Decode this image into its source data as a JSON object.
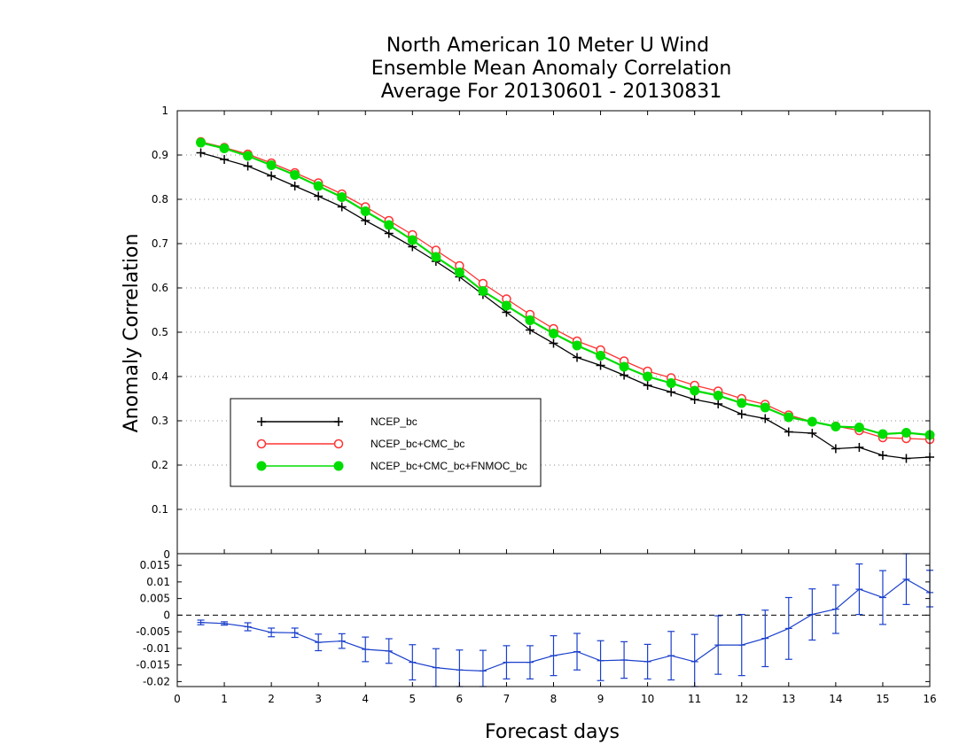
{
  "chart_data": [
    {
      "type": "line",
      "title_lines": [
        "North American 10 Meter U Wind",
        "Ensemble Mean Anomaly Correlation",
        "Average For 20130601 - 20130831"
      ],
      "ylabel": "Anomaly Correlation",
      "xlim": [
        0,
        16
      ],
      "ylim": [
        0,
        1
      ],
      "y_ticks": [
        "0",
        "0.1",
        "0.2",
        "0.3",
        "0.4",
        "0.5",
        "0.6",
        "0.7",
        "0.8",
        "0.9",
        "1"
      ],
      "grid": "horizontal-dotted",
      "legend_position": "lower-left",
      "x": [
        0.5,
        1,
        1.5,
        2,
        2.5,
        3,
        3.5,
        4,
        4.5,
        5,
        5.5,
        6,
        6.5,
        7,
        7.5,
        8,
        8.5,
        9,
        9.5,
        10,
        10.5,
        11,
        11.5,
        12,
        12.5,
        13,
        13.5,
        14,
        14.5,
        15,
        15.5,
        16
      ],
      "series": [
        {
          "name": "NCEP_bc",
          "color": "#000000",
          "marker": "plus",
          "values": [
            0.905,
            0.89,
            0.875,
            0.853,
            0.83,
            0.807,
            0.783,
            0.752,
            0.723,
            0.693,
            0.66,
            0.625,
            0.585,
            0.545,
            0.505,
            0.475,
            0.443,
            0.425,
            0.403,
            0.38,
            0.365,
            0.348,
            0.338,
            0.315,
            0.305,
            0.275,
            0.272,
            0.237,
            0.24,
            0.222,
            0.215,
            0.218
          ]
        },
        {
          "name": "NCEP_bc+CMC_bc",
          "color": "#ff3333",
          "marker": "open-circle",
          "values": [
            0.93,
            0.917,
            0.902,
            0.882,
            0.86,
            0.837,
            0.812,
            0.783,
            0.752,
            0.72,
            0.685,
            0.65,
            0.61,
            0.575,
            0.54,
            0.508,
            0.48,
            0.46,
            0.435,
            0.412,
            0.397,
            0.38,
            0.367,
            0.35,
            0.337,
            0.313,
            0.298,
            0.288,
            0.278,
            0.262,
            0.26,
            0.258
          ]
        },
        {
          "name": "NCEP_bc+CMC_bc+FNMOC_bc",
          "color": "#00dd00",
          "marker": "filled-circle",
          "values": [
            0.928,
            0.915,
            0.898,
            0.877,
            0.855,
            0.83,
            0.805,
            0.773,
            0.742,
            0.708,
            0.67,
            0.635,
            0.593,
            0.56,
            0.527,
            0.497,
            0.47,
            0.447,
            0.422,
            0.4,
            0.385,
            0.368,
            0.357,
            0.34,
            0.33,
            0.308,
            0.298,
            0.287,
            0.285,
            0.27,
            0.273,
            0.268
          ]
        }
      ]
    },
    {
      "type": "line",
      "xlabel": "Forecast days",
      "xlim": [
        0,
        16
      ],
      "ylim": [
        -0.0215,
        0.0185
      ],
      "x_ticks": [
        "0",
        "1",
        "2",
        "3",
        "4",
        "5",
        "6",
        "7",
        "8",
        "9",
        "10",
        "11",
        "12",
        "13",
        "14",
        "15",
        "16"
      ],
      "y_ticks": [
        "-0.02",
        "-0.015",
        "-0.01",
        "-0.005",
        "0",
        "0.005",
        "0.01",
        "0.015"
      ],
      "top_label": "0",
      "reference_line": 0,
      "series": [
        {
          "name": "difference",
          "color": "#1a3fcc",
          "x": [
            0.5,
            1,
            1.5,
            2,
            2.5,
            3,
            3.5,
            4,
            4.5,
            5,
            5.5,
            6,
            6.5,
            7,
            7.5,
            8,
            8.5,
            9,
            9.5,
            10,
            10.5,
            11,
            11.5,
            12,
            12.5,
            13,
            13.5,
            14,
            14.5,
            15,
            15.5,
            16
          ],
          "values": [
            -0.0022,
            -0.0025,
            -0.0035,
            -0.0052,
            -0.0053,
            -0.0082,
            -0.0078,
            -0.0103,
            -0.0108,
            -0.0142,
            -0.0158,
            -0.0165,
            -0.0168,
            -0.0142,
            -0.0142,
            -0.0122,
            -0.011,
            -0.0137,
            -0.0135,
            -0.014,
            -0.0122,
            -0.014,
            -0.009,
            -0.009,
            -0.007,
            -0.004,
            0.0002,
            0.0018,
            0.0078,
            0.0053,
            0.0108,
            0.0068
          ],
          "error_low": [
            -0.0029,
            -0.003,
            -0.0047,
            -0.0065,
            -0.0067,
            -0.0107,
            -0.01,
            -0.014,
            -0.0145,
            -0.0195,
            -0.0215,
            -0.0225,
            -0.023,
            -0.0192,
            -0.0192,
            -0.0182,
            -0.0165,
            -0.0197,
            -0.019,
            -0.0192,
            -0.0195,
            -0.0222,
            -0.0178,
            -0.0182,
            -0.0155,
            -0.0133,
            -0.0075,
            -0.0055,
            0.0002,
            -0.0028,
            0.0032,
            0.0025
          ],
          "error_high": [
            -0.0015,
            -0.002,
            -0.0023,
            -0.0039,
            -0.0039,
            -0.0057,
            -0.0056,
            -0.0066,
            -0.0071,
            -0.0089,
            -0.0101,
            -0.0105,
            -0.0106,
            -0.0092,
            -0.0092,
            -0.0062,
            -0.0055,
            -0.0077,
            -0.008,
            -0.0088,
            -0.0049,
            -0.0058,
            -0.0002,
            0.0002,
            0.0015,
            0.0053,
            0.0079,
            0.0091,
            0.0154,
            0.0134,
            0.0185,
            0.0135
          ]
        }
      ]
    }
  ]
}
